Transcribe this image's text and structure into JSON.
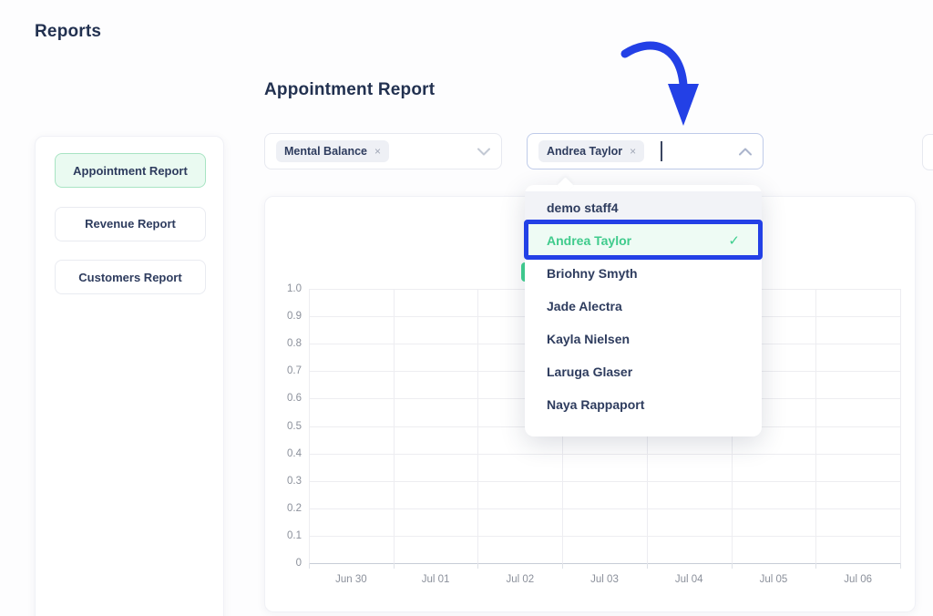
{
  "page": {
    "title": "Reports"
  },
  "sidebar": {
    "items": [
      {
        "label": "Appointment Report",
        "selected": true
      },
      {
        "label": "Revenue Report",
        "selected": false
      },
      {
        "label": "Customers Report",
        "selected": false
      }
    ]
  },
  "main": {
    "heading": "Appointment Report",
    "service_select": {
      "tag": "Mental Balance",
      "remove_icon": "×",
      "chevron": "down"
    },
    "staff_select": {
      "tag": "Andrea Taylor",
      "remove_icon": "×",
      "chevron": "up",
      "focused": true
    },
    "staff_dropdown": {
      "options": [
        {
          "label": "demo staff4",
          "state": "hover"
        },
        {
          "label": "Andrea Taylor",
          "state": "selected",
          "check_icon": "✓",
          "annotated": true
        },
        {
          "label": "Briohny Smyth",
          "state": "normal"
        },
        {
          "label": "Jade Alectra",
          "state": "normal"
        },
        {
          "label": "Kayla Nielsen",
          "state": "normal"
        },
        {
          "label": "Laruga Glaser",
          "state": "normal"
        },
        {
          "label": "Naya Rappaport",
          "state": "normal"
        }
      ]
    }
  },
  "chart_data": {
    "type": "line",
    "title": "",
    "x": [
      "Jun 30",
      "Jul 01",
      "Jul 02",
      "Jul 03",
      "Jul 04",
      "Jul 05",
      "Jul 06"
    ],
    "y_ticks": [
      "1.0",
      "0.9",
      "0.8",
      "0.7",
      "0.6",
      "0.5",
      "0.4",
      "0.3",
      "0.2",
      "0.1",
      "0"
    ],
    "ylim": [
      0,
      1.0
    ],
    "series": [],
    "grid": true,
    "legend": {
      "position": "top",
      "swatch_color": "#41d392",
      "note": "mostly hidden behind open dropdown"
    }
  },
  "colors": {
    "accent_green": "#3fcb8c",
    "annotation_blue": "#2340e6",
    "navy_text": "#223150",
    "selected_btn_bg": "#eafaf1",
    "selected_btn_border": "#a8e4c3"
  }
}
